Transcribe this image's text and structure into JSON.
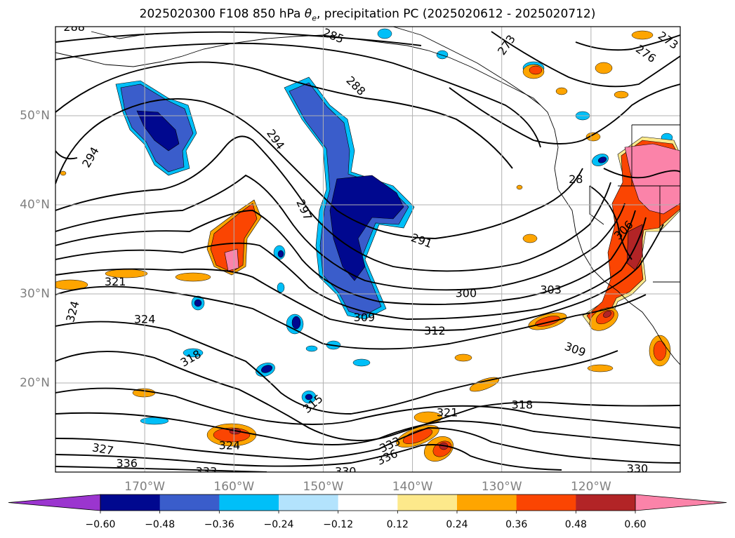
{
  "title_prefix": "2025020300 F108 850 hPa ",
  "title_theta": "θ",
  "title_theta_sub": "e",
  "title_suffix": ", precipitation PC (2025020612 - 2025020712)",
  "chart_data": {
    "type": "heatmap",
    "title": "2025020300 F108 850 hPa θe, precipitation PC (2025020612 - 2025020712)",
    "xlim": [
      -180,
      -110
    ],
    "ylim": [
      10,
      60
    ],
    "grid": true,
    "lon_ticks": [
      {
        "value": -170,
        "label": "170°W"
      },
      {
        "value": -160,
        "label": "160°W"
      },
      {
        "value": -150,
        "label": "150°W"
      },
      {
        "value": -140,
        "label": "140°W"
      },
      {
        "value": -130,
        "label": "130°W"
      },
      {
        "value": -120,
        "label": "120°W"
      }
    ],
    "lat_ticks": [
      {
        "value": 20,
        "label": "20°N"
      },
      {
        "value": 30,
        "label": "30°N"
      },
      {
        "value": 40,
        "label": "40°N"
      },
      {
        "value": 50,
        "label": "50°N"
      }
    ],
    "colorbar": {
      "extend": "both",
      "bounds": [
        -0.72,
        -0.6,
        -0.48,
        -0.36,
        -0.24,
        -0.12,
        0.12,
        0.24,
        0.36,
        0.48,
        0.6,
        0.72
      ],
      "tick_values": [
        -0.6,
        -0.48,
        -0.36,
        -0.24,
        -0.12,
        0.12,
        0.24,
        0.36,
        0.48,
        0.6
      ],
      "tick_labels": [
        "−0.60",
        "−0.48",
        "−0.36",
        "−0.24",
        "−0.12",
        "0.12",
        "0.24",
        "0.36",
        "0.48",
        "0.60"
      ],
      "colors": [
        "#9b35cf",
        "#00088f",
        "#3a5dcb",
        "#00bff8",
        "#b3e3fd",
        "#ffffff",
        "#fde98b",
        "#fea500",
        "#fb4502",
        "#b22426",
        "#fb83a9"
      ]
    },
    "contour_labels": [
      {
        "text": "288",
        "lon": -177.9,
        "lat": 59.9,
        "rot": 0
      },
      {
        "text": "285",
        "lon": -148.9,
        "lat": 58.9,
        "rot": 22
      },
      {
        "text": "273",
        "lon": -129.4,
        "lat": 57.9,
        "rot": -55
      },
      {
        "text": "276",
        "lon": -113.9,
        "lat": 56.9,
        "rot": 35
      },
      {
        "text": "273",
        "lon": -111.4,
        "lat": 58.4,
        "rot": 35
      },
      {
        "text": "288",
        "lon": -146.4,
        "lat": 53.3,
        "rot": 45
      },
      {
        "text": "294",
        "lon": -155.4,
        "lat": 47.3,
        "rot": 55
      },
      {
        "text": "294",
        "lon": -176.0,
        "lat": 45.3,
        "rot": -60
      },
      {
        "text": "28",
        "lon": -121.7,
        "lat": 42.8,
        "rot": 0
      },
      {
        "text": "297",
        "lon": -152.2,
        "lat": 39.4,
        "rot": 65
      },
      {
        "text": "306",
        "lon": -116.3,
        "lat": 37.1,
        "rot": -45
      },
      {
        "text": "291",
        "lon": -139.0,
        "lat": 35.9,
        "rot": 20
      },
      {
        "text": "321",
        "lon": -173.3,
        "lat": 31.3,
        "rot": 0
      },
      {
        "text": "300",
        "lon": -134.0,
        "lat": 30.0,
        "rot": 0
      },
      {
        "text": "303",
        "lon": -124.5,
        "lat": 30.4,
        "rot": 0
      },
      {
        "text": "324",
        "lon": -178.0,
        "lat": 28.0,
        "rot": -75
      },
      {
        "text": "324",
        "lon": -170.0,
        "lat": 27.1,
        "rot": 0
      },
      {
        "text": "309",
        "lon": -145.4,
        "lat": 27.3,
        "rot": 0
      },
      {
        "text": "312",
        "lon": -137.5,
        "lat": 25.8,
        "rot": 0
      },
      {
        "text": "309",
        "lon": -121.8,
        "lat": 23.7,
        "rot": 20
      },
      {
        "text": "318",
        "lon": -164.8,
        "lat": 22.7,
        "rot": -30
      },
      {
        "text": "315",
        "lon": -151.1,
        "lat": 17.6,
        "rot": -40
      },
      {
        "text": "321",
        "lon": -136.1,
        "lat": 16.6,
        "rot": 0
      },
      {
        "text": "318",
        "lon": -127.7,
        "lat": 17.5,
        "rot": 0
      },
      {
        "text": "324",
        "lon": -160.5,
        "lat": 12.9,
        "rot": 0
      },
      {
        "text": "327",
        "lon": -174.7,
        "lat": 12.5,
        "rot": 10
      },
      {
        "text": "333",
        "lon": -142.5,
        "lat": 13.0,
        "rot": -25
      },
      {
        "text": "336",
        "lon": -142.8,
        "lat": 11.6,
        "rot": -25
      },
      {
        "text": "336",
        "lon": -172.0,
        "lat": 10.9,
        "rot": 0
      },
      {
        "text": "333",
        "lon": -163.1,
        "lat": 10.0,
        "rot": 0
      },
      {
        "text": "330",
        "lon": -147.5,
        "lat": 10.0,
        "rot": 0
      },
      {
        "text": "330",
        "lon": -114.8,
        "lat": 10.3,
        "rot": 0
      }
    ]
  }
}
